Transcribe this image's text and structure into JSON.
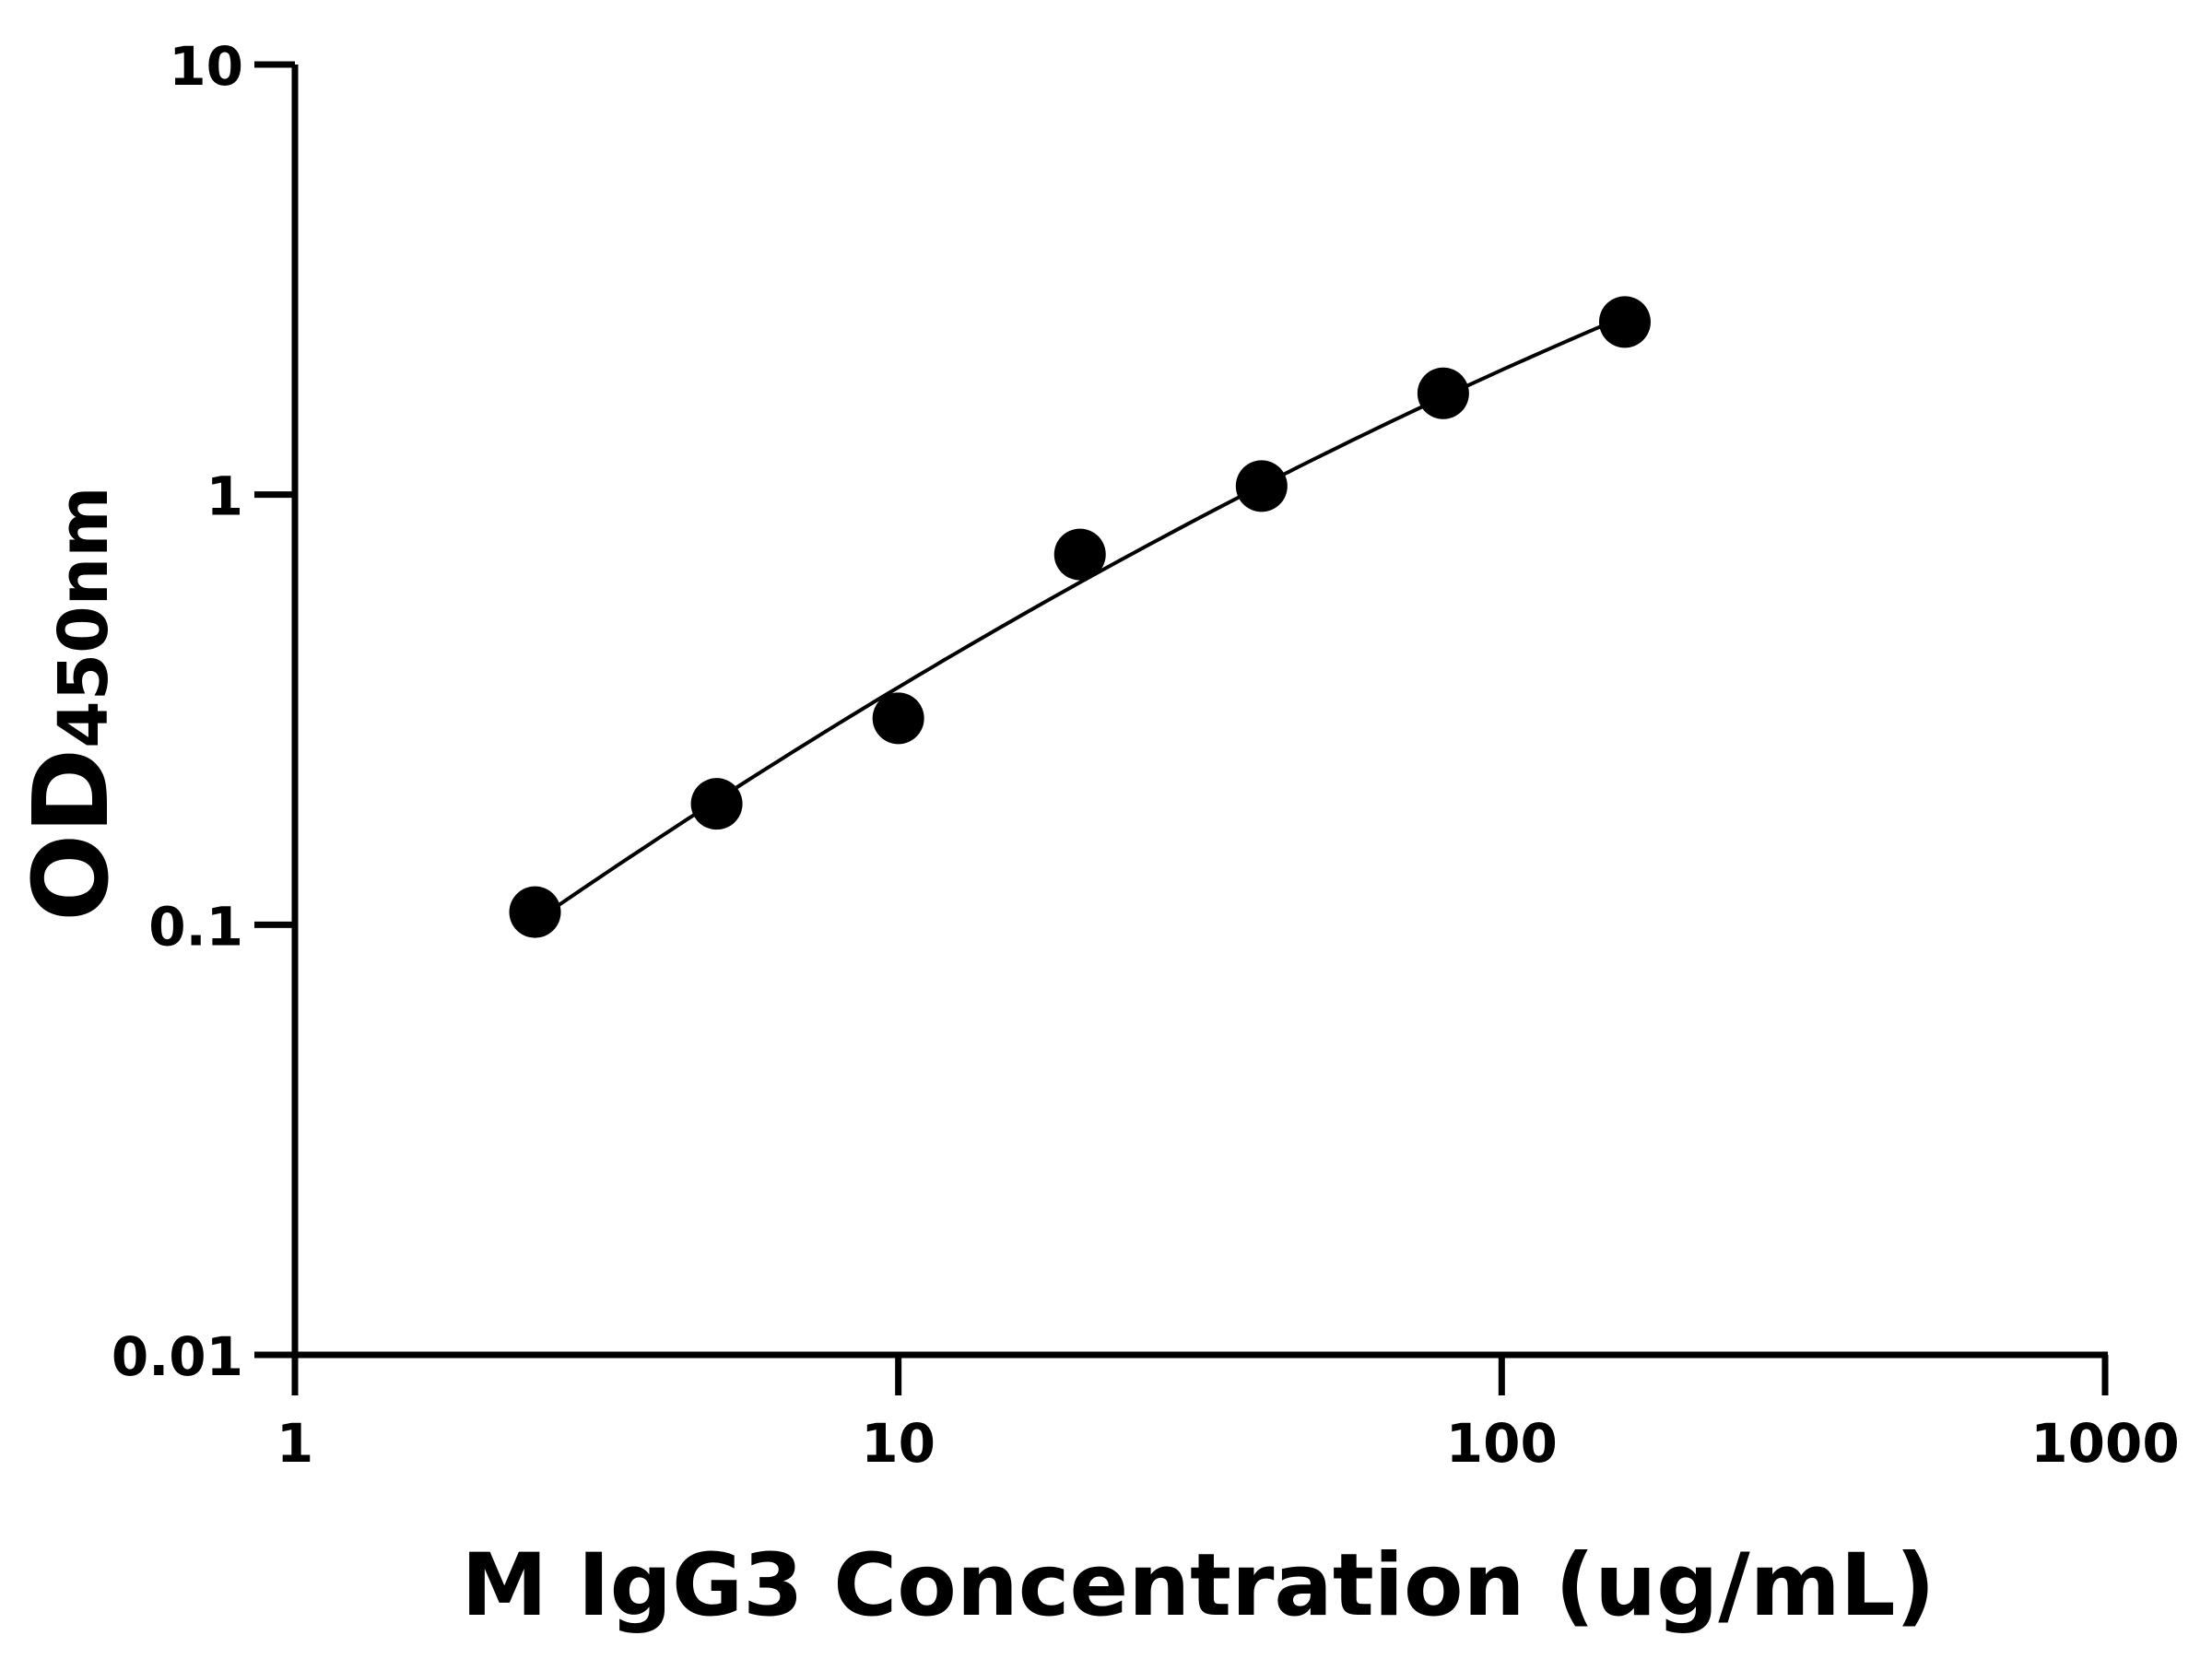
{
  "chart_data": {
    "type": "scatter",
    "title": "",
    "xlabel": "M IgG3 Concentration (ug/mL)",
    "ylabel_main": "OD",
    "ylabel_sub": "450nm",
    "xscale": "log",
    "yscale": "log",
    "xlim": [
      1,
      1000
    ],
    "ylim": [
      0.01,
      10
    ],
    "xticks": [
      "1",
      "10",
      "100",
      "1000"
    ],
    "yticks": [
      "0.01",
      "0.1",
      "1",
      "10"
    ],
    "grid": false,
    "fit_curve": true,
    "marker_color": "#000000",
    "points": [
      {
        "x": 2.5,
        "y": 0.107
      },
      {
        "x": 5,
        "y": 0.191
      },
      {
        "x": 10,
        "y": 0.302
      },
      {
        "x": 20,
        "y": 0.726
      },
      {
        "x": 40,
        "y": 1.047
      },
      {
        "x": 80,
        "y": 1.72
      },
      {
        "x": 160,
        "y": 2.52
      }
    ]
  }
}
